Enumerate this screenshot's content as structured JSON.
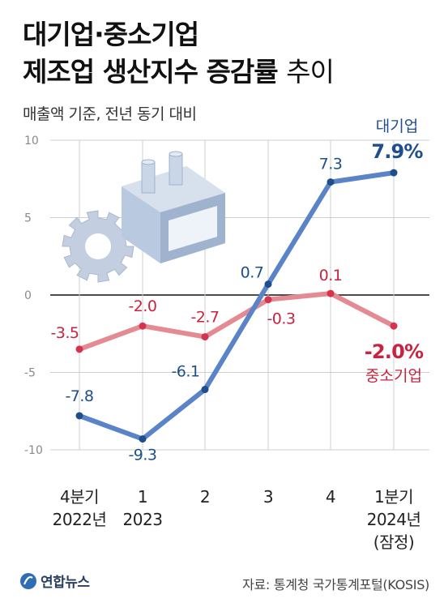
{
  "title": {
    "line1": "대기업·중소기업",
    "line2_bold": "제조업 생산지수 증감률",
    "line2_light": "추이"
  },
  "subtitle": "매출액 기준, 전년 동기 대비",
  "source": "자료: 통계청 국가통계포털(KOSIS)",
  "logo": "연합뉴스",
  "colors": {
    "large": "#5b84c8",
    "large_marker": "#1e4e8c",
    "large_label": "#1e4e8c",
    "sme": "#e38a93",
    "sme_marker": "#d6334f",
    "sme_label": "#c8243f",
    "axis_text": "#8a8a8a",
    "grid": "#cfcfcf"
  },
  "chart_data": {
    "type": "line",
    "x": [
      [
        "4분기",
        "2022년"
      ],
      [
        "1",
        "2023"
      ],
      [
        "2",
        ""
      ],
      [
        "3",
        ""
      ],
      [
        "4",
        ""
      ],
      [
        "1분기",
        "2024년",
        "(잠정)"
      ]
    ],
    "ylim": [
      -10,
      10
    ],
    "yticks": [
      "10",
      "5",
      "0",
      "-5",
      "-10"
    ],
    "series": [
      {
        "name": "대기업",
        "values": [
          -7.8,
          -9.3,
          -6.1,
          0.7,
          7.3,
          7.9
        ],
        "labels": [
          "-7.8",
          "-9.3",
          "-6.1",
          "0.7",
          "7.3",
          "7.9%"
        ]
      },
      {
        "name": "중소기업",
        "values": [
          -3.5,
          -2.0,
          -2.7,
          -0.3,
          0.1,
          -2.0
        ],
        "labels": [
          "-3.5",
          "-2.0",
          "-2.7",
          "-0.3",
          "0.1",
          "-2.0%"
        ]
      }
    ]
  }
}
